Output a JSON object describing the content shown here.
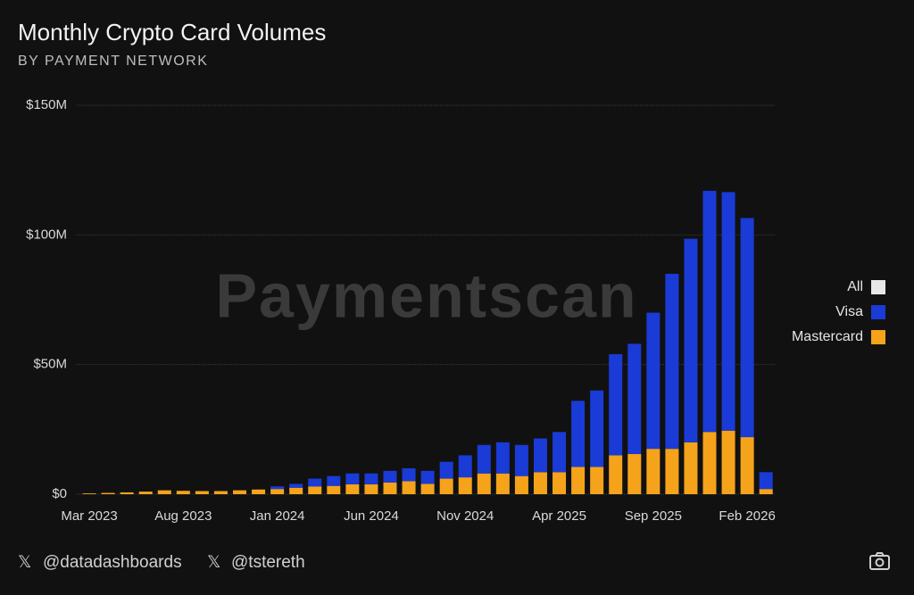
{
  "chart_data": {
    "type": "stacked_bar",
    "title": "Monthly Crypto Card Volumes",
    "subtitle": "BY PAYMENT NETWORK",
    "watermark": "Paymentscan",
    "categories": [
      "Mar 2023",
      null,
      null,
      null,
      null,
      "Aug 2023",
      null,
      null,
      null,
      null,
      "Jan 2024",
      null,
      null,
      null,
      null,
      "Jun 2024",
      null,
      null,
      null,
      null,
      "Nov 2024",
      null,
      null,
      null,
      null,
      "Apr 2025",
      null,
      null,
      null,
      null,
      "Sep 2025",
      null,
      null,
      null,
      null,
      "Feb 2026",
      null
    ],
    "series": [
      {
        "name": "Mastercard",
        "color": "#f5a31a",
        "values": [
          0.3,
          0.5,
          0.7,
          1.0,
          1.5,
          1.3,
          1.2,
          1.2,
          1.5,
          1.8,
          2,
          2.5,
          3,
          3.2,
          3.8,
          3.8,
          4.5,
          5,
          4,
          6,
          6.5,
          8,
          8,
          7,
          8.5,
          8.5,
          10.5,
          10.5,
          15,
          15.5,
          17.5,
          17.5,
          20,
          24,
          24.5,
          22,
          2
        ]
      },
      {
        "name": "Visa",
        "color": "#1a3bd6",
        "values": [
          0,
          0,
          0,
          0,
          0,
          0,
          0,
          0,
          0,
          0,
          1,
          1.5,
          3,
          3.8,
          4.2,
          4.2,
          4.5,
          5,
          5,
          6.5,
          8.5,
          11,
          12,
          12,
          13,
          15.5,
          25.5,
          29.5,
          39,
          42.5,
          52.5,
          67.5,
          78.5,
          93,
          92,
          84.5,
          6.5
        ]
      }
    ],
    "legend_all": {
      "name": "All",
      "color": "#e8e8e8"
    },
    "legend": "right",
    "ylim": [
      0,
      150
    ],
    "yticks": [
      {
        "value": 0,
        "label": "$0"
      },
      {
        "value": 50,
        "label": "$50M"
      },
      {
        "value": 100,
        "label": "$100M"
      },
      {
        "value": 150,
        "label": "$150M"
      }
    ],
    "grid": true,
    "footer": [
      "@datadashboards",
      "@tstereth"
    ]
  }
}
